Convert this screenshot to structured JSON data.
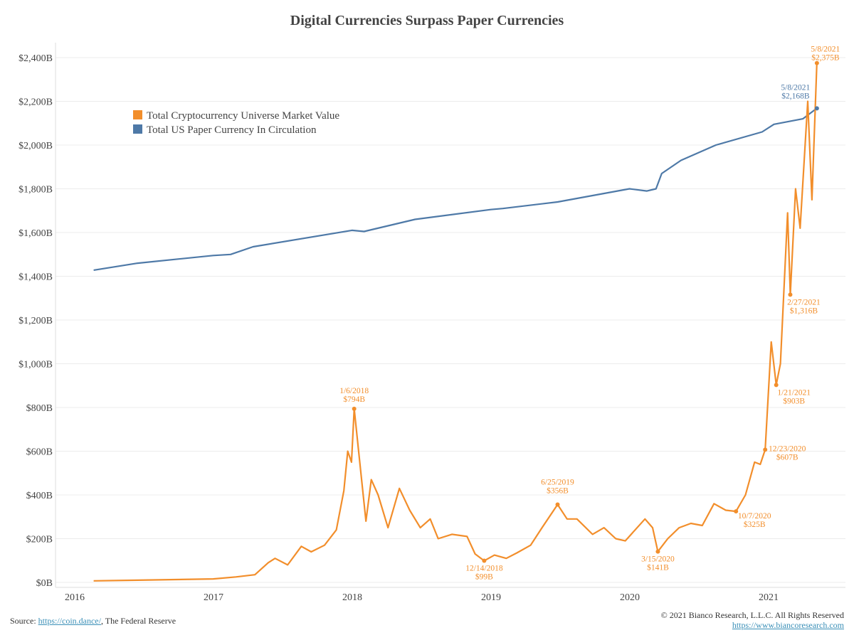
{
  "chart_data": {
    "type": "line",
    "title": "Digital Currencies Surpass Paper Currencies",
    "xlabel": "",
    "ylabel": "",
    "xlim": [
      "2015-11-01",
      "2021-07-15"
    ],
    "ylim": [
      0,
      2400
    ],
    "x_ticks": [
      "2016",
      "2017",
      "2018",
      "2019",
      "2020",
      "2021"
    ],
    "y_ticks": [
      {
        "value": 0,
        "label": "$0B"
      },
      {
        "value": 200,
        "label": "$200B"
      },
      {
        "value": 400,
        "label": "$400B"
      },
      {
        "value": 600,
        "label": "$600B"
      },
      {
        "value": 800,
        "label": "$800B"
      },
      {
        "value": 1000,
        "label": "$1,000B"
      },
      {
        "value": 1200,
        "label": "$1,200B"
      },
      {
        "value": 1400,
        "label": "$1,400B"
      },
      {
        "value": 1600,
        "label": "$1,600B"
      },
      {
        "value": 1800,
        "label": "$1,800B"
      },
      {
        "value": 2000,
        "label": "$2,000B"
      },
      {
        "value": 2200,
        "label": "$2,200B"
      },
      {
        "value": 2400,
        "label": "$2,400B"
      }
    ],
    "grid": true,
    "legend_position": "top-left",
    "series": [
      {
        "name": "Total Cryptocurrency Universe Market Value",
        "color": "#F28E2B",
        "points": [
          [
            "2016-02-20",
            7
          ],
          [
            "2016-06-15",
            10
          ],
          [
            "2016-12-31",
            16
          ],
          [
            "2017-03-01",
            25
          ],
          [
            "2017-04-20",
            35
          ],
          [
            "2017-05-25",
            90
          ],
          [
            "2017-06-12",
            110
          ],
          [
            "2017-07-15",
            80
          ],
          [
            "2017-08-20",
            165
          ],
          [
            "2017-09-15",
            140
          ],
          [
            "2017-10-20",
            170
          ],
          [
            "2017-11-20",
            240
          ],
          [
            "2017-12-10",
            420
          ],
          [
            "2017-12-20",
            600
          ],
          [
            "2017-12-30",
            550
          ],
          [
            "2018-01-06",
            794
          ],
          [
            "2018-01-20",
            560
          ],
          [
            "2018-02-06",
            280
          ],
          [
            "2018-02-20",
            470
          ],
          [
            "2018-03-10",
            400
          ],
          [
            "2018-04-05",
            250
          ],
          [
            "2018-05-05",
            430
          ],
          [
            "2018-06-01",
            330
          ],
          [
            "2018-06-29",
            250
          ],
          [
            "2018-07-25",
            290
          ],
          [
            "2018-08-15",
            200
          ],
          [
            "2018-09-20",
            220
          ],
          [
            "2018-10-30",
            210
          ],
          [
            "2018-11-20",
            130
          ],
          [
            "2018-12-14",
            99
          ],
          [
            "2019-01-10",
            125
          ],
          [
            "2019-02-10",
            110
          ],
          [
            "2019-03-10",
            135
          ],
          [
            "2019-04-15",
            170
          ],
          [
            "2019-05-15",
            250
          ],
          [
            "2019-06-25",
            356
          ],
          [
            "2019-07-20",
            290
          ],
          [
            "2019-08-15",
            290
          ],
          [
            "2019-09-25",
            220
          ],
          [
            "2019-10-25",
            250
          ],
          [
            "2019-11-25",
            200
          ],
          [
            "2019-12-20",
            190
          ],
          [
            "2020-02-10",
            290
          ],
          [
            "2020-03-01",
            250
          ],
          [
            "2020-03-15",
            141
          ],
          [
            "2020-04-10",
            200
          ],
          [
            "2020-05-10",
            250
          ],
          [
            "2020-06-10",
            270
          ],
          [
            "2020-07-10",
            260
          ],
          [
            "2020-08-10",
            360
          ],
          [
            "2020-09-10",
            330
          ],
          [
            "2020-10-07",
            325
          ],
          [
            "2020-11-01",
            400
          ],
          [
            "2020-11-25",
            550
          ],
          [
            "2020-12-10",
            540
          ],
          [
            "2020-12-23",
            607
          ],
          [
            "2021-01-08",
            1100
          ],
          [
            "2021-01-21",
            903
          ],
          [
            "2021-02-01",
            1000
          ],
          [
            "2021-02-20",
            1690
          ],
          [
            "2021-02-27",
            1316
          ],
          [
            "2021-03-13",
            1800
          ],
          [
            "2021-03-25",
            1620
          ],
          [
            "2021-04-14",
            2200
          ],
          [
            "2021-04-25",
            1750
          ],
          [
            "2021-05-08",
            2375
          ]
        ]
      },
      {
        "name": "Total US Paper Currency In Circulation",
        "color": "#4E79A7",
        "points": [
          [
            "2016-02-20",
            1428
          ],
          [
            "2016-06-15",
            1460
          ],
          [
            "2016-12-31",
            1495
          ],
          [
            "2017-02-15",
            1500
          ],
          [
            "2017-04-15",
            1535
          ],
          [
            "2017-12-31",
            1610
          ],
          [
            "2018-02-01",
            1605
          ],
          [
            "2018-06-15",
            1660
          ],
          [
            "2018-12-31",
            1705
          ],
          [
            "2019-02-01",
            1710
          ],
          [
            "2019-06-25",
            1740
          ],
          [
            "2019-12-31",
            1800
          ],
          [
            "2020-02-15",
            1790
          ],
          [
            "2020-03-10",
            1800
          ],
          [
            "2020-03-25",
            1870
          ],
          [
            "2020-05-15",
            1930
          ],
          [
            "2020-08-15",
            2000
          ],
          [
            "2020-12-15",
            2060
          ],
          [
            "2021-01-15",
            2095
          ],
          [
            "2021-04-01",
            2120
          ],
          [
            "2021-05-08",
            2168
          ]
        ]
      }
    ],
    "annotations": [
      {
        "series": 0,
        "date": "2018-01-06",
        "value": 794,
        "line1": "1/6/2018",
        "line2": "$794B"
      },
      {
        "series": 0,
        "date": "2018-12-14",
        "value": 99,
        "line1": "12/14/2018",
        "line2": "$99B"
      },
      {
        "series": 0,
        "date": "2019-06-25",
        "value": 356,
        "line1": "6/25/2019",
        "line2": "$356B"
      },
      {
        "series": 0,
        "date": "2020-03-15",
        "value": 141,
        "line1": "3/15/2020",
        "line2": "$141B"
      },
      {
        "series": 0,
        "date": "2020-10-07",
        "value": 325,
        "line1": "10/7/2020",
        "line2": "$325B"
      },
      {
        "series": 0,
        "date": "2020-12-23",
        "value": 607,
        "line1": "12/23/2020",
        "line2": "$607B"
      },
      {
        "series": 0,
        "date": "2021-01-21",
        "value": 903,
        "line1": "1/21/2021",
        "line2": "$903B"
      },
      {
        "series": 0,
        "date": "2021-02-27",
        "value": 1316,
        "line1": "2/27/2021",
        "line2": "$1,316B"
      },
      {
        "series": 0,
        "date": "2021-05-08",
        "value": 2375,
        "line1": "5/8/2021",
        "line2": "$2,375B"
      },
      {
        "series": 1,
        "date": "2021-05-08",
        "value": 2168,
        "line1": "5/8/2021",
        "line2": "$2,168B"
      }
    ]
  },
  "footer": {
    "source_prefix": "Source: ",
    "source_link": "https://coin.dance/",
    "source_suffix": ", The Federal Reserve",
    "copyright": "© 2021 Bianco Research, L.L.C. All Rights Reserved",
    "website": "https://www.biancoresearch.com"
  }
}
